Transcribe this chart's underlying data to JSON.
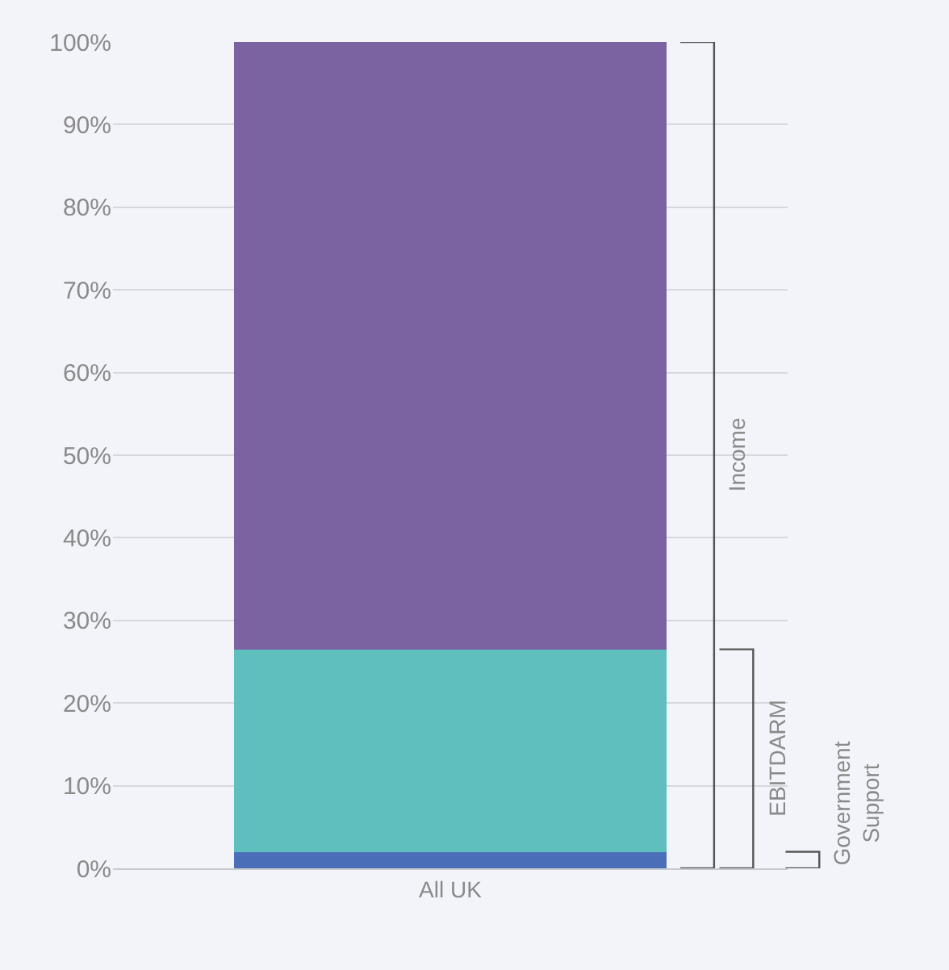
{
  "chart_data": {
    "type": "bar",
    "stacked": true,
    "categories": [
      "All UK"
    ],
    "series": [
      {
        "color": "#4a6fb8",
        "values": [
          2
        ]
      },
      {
        "color": "#5ebfbe",
        "values": [
          24.5
        ]
      },
      {
        "color": "#7b62a0",
        "values": [
          73.5
        ]
      }
    ],
    "ylim": [
      0,
      100
    ],
    "yticks": [
      {
        "value": 0,
        "label": "0%"
      },
      {
        "value": 10,
        "label": "10%"
      },
      {
        "value": 20,
        "label": "20%"
      },
      {
        "value": 30,
        "label": "30%"
      },
      {
        "value": 40,
        "label": "40%"
      },
      {
        "value": 50,
        "label": "50%"
      },
      {
        "value": 60,
        "label": "60%"
      },
      {
        "value": 70,
        "label": "70%"
      },
      {
        "value": 80,
        "label": "80%"
      },
      {
        "value": 90,
        "label": "90%"
      },
      {
        "value": 100,
        "label": "100%"
      }
    ],
    "annotations": [
      "Income",
      "EBITDARM",
      "Government Support"
    ],
    "grid": "y"
  }
}
